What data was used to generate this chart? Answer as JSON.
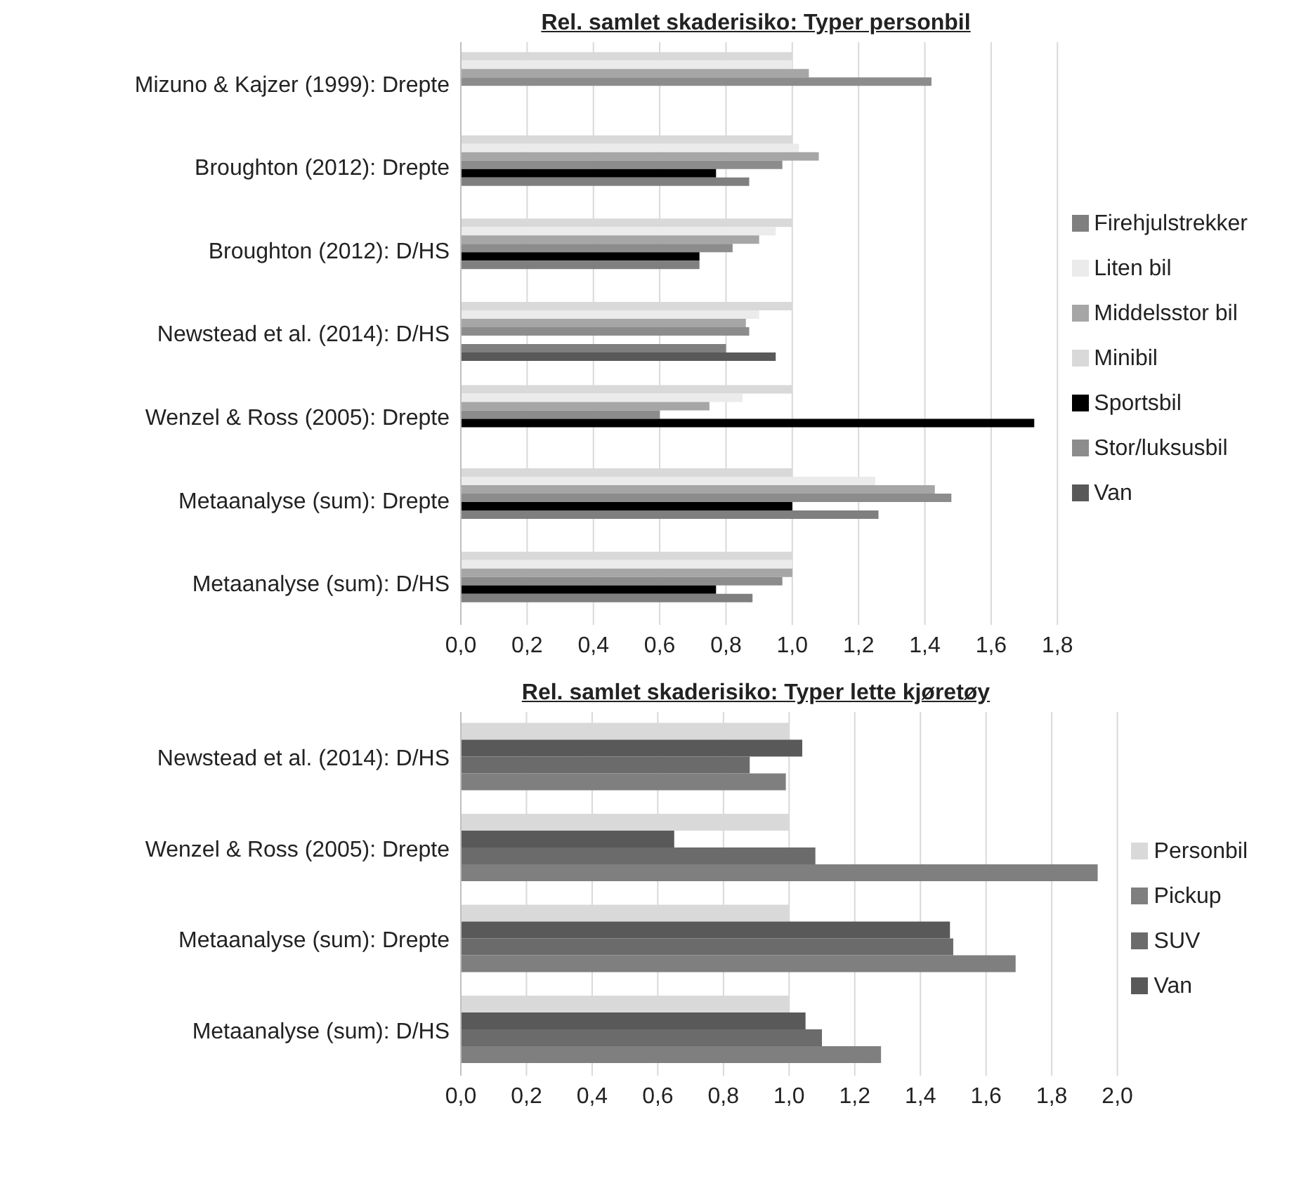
{
  "chart_data": [
    {
      "type": "bar",
      "orientation": "horizontal",
      "title": "Rel. samlet skaderisiko: Typer personbil",
      "categories": [
        "Mizuno & Kajzer (1999): Drepte",
        "Broughton (2012): Drepte",
        "Broughton (2012): D/HS",
        "Newstead et al. (2014): D/HS",
        "Wenzel & Ross (2005): Drepte",
        "Metaanalyse (sum): Drepte",
        "Metaanalyse (sum): D/HS"
      ],
      "series": [
        {
          "name": "Minibil",
          "color": "#d9d9d9",
          "values": [
            1.0,
            1.0,
            1.0,
            1.0,
            1.0,
            1.0,
            1.0
          ]
        },
        {
          "name": "Liten bil",
          "color": "#ebebeb",
          "values": [
            1.0,
            1.02,
            0.95,
            0.9,
            0.85,
            1.25,
            1.0
          ]
        },
        {
          "name": "Middelsstor bil",
          "color": "#a6a6a6",
          "values": [
            1.05,
            1.08,
            0.9,
            0.86,
            0.75,
            1.43,
            1.0
          ]
        },
        {
          "name": "Stor/luksusbil",
          "color": "#8c8c8c",
          "values": [
            1.42,
            0.97,
            0.82,
            0.87,
            0.6,
            1.48,
            0.97
          ]
        },
        {
          "name": "Sportsbil",
          "color": "#000000",
          "values": [
            null,
            0.77,
            0.72,
            null,
            1.73,
            1.0,
            0.77
          ]
        },
        {
          "name": "Firehjulstrekker",
          "color": "#7f7f7f",
          "values": [
            null,
            0.87,
            0.72,
            0.8,
            null,
            1.26,
            0.88
          ]
        },
        {
          "name": "Van",
          "color": "#595959",
          "values": [
            null,
            null,
            null,
            0.95,
            null,
            null,
            null
          ]
        }
      ],
      "xlim": [
        0,
        1.8
      ],
      "xticks": [
        {
          "value": 0,
          "label": "0,0"
        },
        {
          "value": 0.2,
          "label": "0,2"
        },
        {
          "value": 0.4,
          "label": "0,4"
        },
        {
          "value": 0.6,
          "label": "0,6"
        },
        {
          "value": 0.8,
          "label": "0,8"
        },
        {
          "value": 1,
          "label": "1,0"
        },
        {
          "value": 1.2,
          "label": "1,2"
        },
        {
          "value": 1.4,
          "label": "1,4"
        },
        {
          "value": 1.6,
          "label": "1,6"
        },
        {
          "value": 1.8,
          "label": "1,8"
        }
      ],
      "grid": "x",
      "legend": "right"
    },
    {
      "type": "bar",
      "orientation": "horizontal",
      "title": "Rel. samlet skaderisiko: Typer lette kjøretøy",
      "categories": [
        "Newstead et al. (2014): D/HS",
        "Wenzel & Ross (2005): Drepte",
        "Metaanalyse (sum): Drepte",
        "Metaanalyse (sum): D/HS"
      ],
      "series": [
        {
          "name": "Personbil",
          "color": "#d9d9d9",
          "values": [
            1.0,
            1.0,
            1.0,
            1.0
          ]
        },
        {
          "name": "Van",
          "color": "#595959",
          "values": [
            1.04,
            0.65,
            1.49,
            1.05
          ]
        },
        {
          "name": "SUV",
          "color": "#6b6b6b",
          "values": [
            0.88,
            1.08,
            1.5,
            1.1
          ]
        },
        {
          "name": "Pickup",
          "color": "#7f7f7f",
          "values": [
            0.99,
            1.94,
            1.69,
            1.28
          ]
        }
      ],
      "xlim": [
        0,
        2
      ],
      "xticks": [
        {
          "value": 0,
          "label": "0,0"
        },
        {
          "value": 0.2,
          "label": "0,2"
        },
        {
          "value": 0.4,
          "label": "0,4"
        },
        {
          "value": 0.6,
          "label": "0,6"
        },
        {
          "value": 0.8,
          "label": "0,8"
        },
        {
          "value": 1,
          "label": "1,0"
        },
        {
          "value": 1.2,
          "label": "1,2"
        },
        {
          "value": 1.4,
          "label": "1,4"
        },
        {
          "value": 1.6,
          "label": "1,6"
        },
        {
          "value": 1.8,
          "label": "1,8"
        },
        {
          "value": 2,
          "label": "2,0"
        }
      ],
      "grid": "x",
      "legend": "right"
    }
  ]
}
